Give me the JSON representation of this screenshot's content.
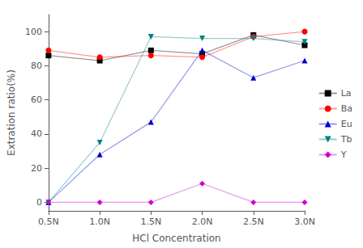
{
  "chart_data": {
    "type": "line",
    "categories": [
      "0.5N",
      "1.0N",
      "1.5N",
      "2.0N",
      "2.5N",
      "3.0N"
    ],
    "series": [
      {
        "name": "La",
        "color": "#000000",
        "marker": "square",
        "values": [
          86,
          83,
          89,
          87,
          98,
          92
        ]
      },
      {
        "name": "Ba",
        "color": "#ff0000",
        "marker": "circle",
        "values": [
          89,
          85,
          86,
          85,
          97,
          100
        ]
      },
      {
        "name": "Eu",
        "color": "#0000cc",
        "marker": "triangle",
        "values": [
          0,
          28,
          47,
          89,
          73,
          83
        ]
      },
      {
        "name": "Tb",
        "color": "#008080",
        "marker": "triangle_down",
        "values": [
          0,
          35,
          97,
          96,
          96,
          94
        ]
      },
      {
        "name": "Y",
        "color": "#cc00cc",
        "marker": "diamond",
        "values": [
          0,
          0,
          0,
          11,
          0,
          0
        ]
      }
    ],
    "xlabel": "HCl Concentration",
    "ylabel": "Extration ratio(%)",
    "ylim": [
      -5,
      110
    ],
    "yticks": [
      0,
      20,
      40,
      60,
      80,
      100
    ],
    "grid": false,
    "legend": "right"
  }
}
